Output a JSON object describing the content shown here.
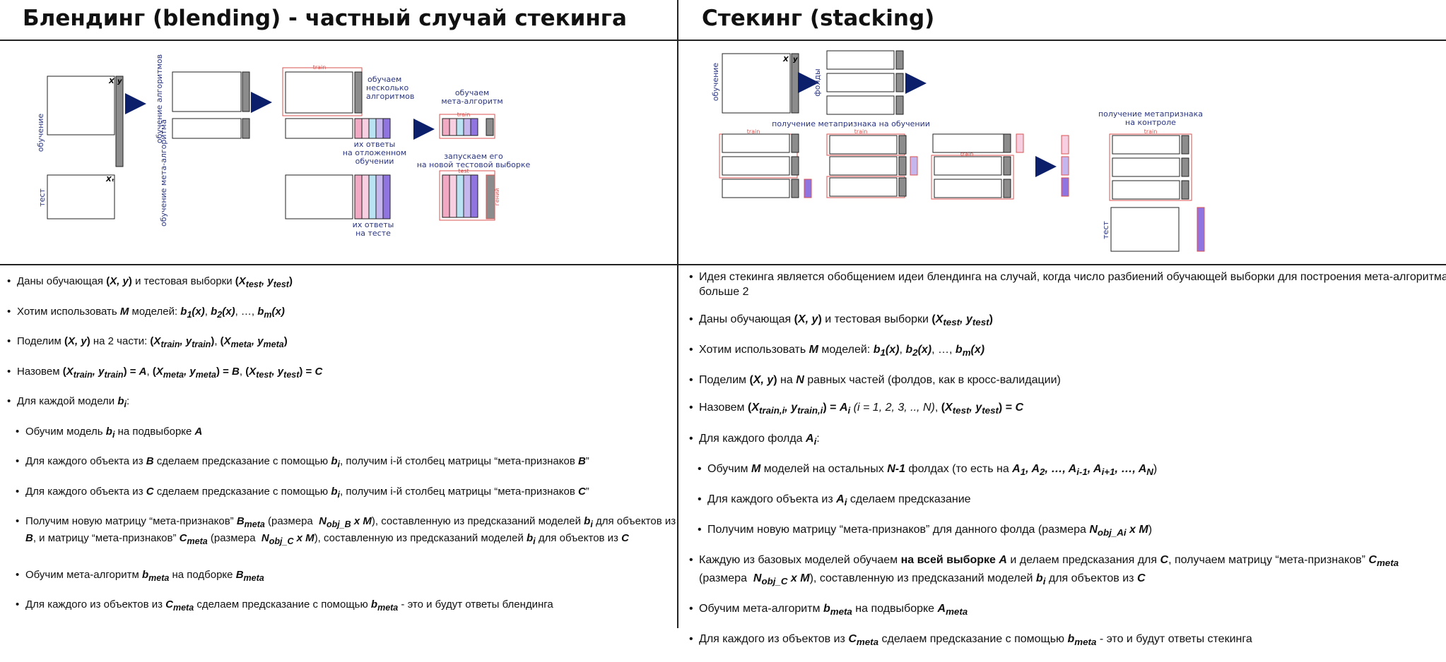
{
  "left_title": "Блендинг (blending) - частный случай стекинга",
  "right_title": "Стекинг (stacking)",
  "left_diagram": {
    "label_training": "обучение",
    "label_test": "тест",
    "col_X": "X",
    "col_y": "y",
    "col_Xt": "Xₜ",
    "label_train_algorithms": "обучение алгоритмов",
    "label_train_meta": "обучение мета-алгоритма",
    "train_tag": "train",
    "test_tag": "test",
    "note_train_several": "обучаем несколько алгоритмов",
    "note_answers_holdout": "их ответы на отложенном обучении",
    "note_train_meta": "обучаем мета-алгоритм",
    "note_run_test": "запускаем его на новой тестовой выборке",
    "note_answers_test": "их ответы на тесте",
    "result_tag": "гений"
  },
  "right_diagram": {
    "label_training": "обучение",
    "col_X": "X",
    "col_y": "y",
    "label_folds": "фолды",
    "note_meta_train": "получение метапризнака на обучении",
    "note_meta_control": "получение метапризнака на контроле",
    "train_tag": "train",
    "label_test": "тест"
  },
  "left_bullets": [
    "Даны обучающая (X, y) и тестовая выборки (Xtest, ytest)",
    "Хотим использовать M моделей: b1(x), b2(x), …, bm(x)",
    "Поделим (X, y) на 2 части: (Xtrain, ytrain), (Xmeta, ymeta)",
    "Назовем (Xtrain, ytrain) = A, (Xmeta, ymeta) = B, (Xtest, ytest) = C",
    "Для каждой модели bi:",
    "Обучим модель bi на подвыборке A",
    "Для каждого объекта из B сделаем предсказание с помощью bi, получим i-й столбец матрицы “мета-признаков B”",
    "Для каждого объекта из C сделаем предсказание с помощью bi, получим i-й столбец матрицы “мета-признаков C”",
    "Получим новую матрицу “мета-признаков” Bmeta (размера Nobj_B x M), составленную из предсказаний моделей bi для объектов из B, и матрицу “мета-признаков” Cmeta (размера Nobj_C x M), составленную из предсказаний моделей bi для объектов из C",
    "Обучим мета-алгоритм bmeta на подборке Bmeta",
    "Для каждого из объектов из Cmeta сделаем предсказание с помощью bmeta - это и будут ответы блендинга"
  ],
  "right_bullets": [
    "Идея стекинга является обобщением идеи блендинга на случай, когда число разбиений обучающей выборки для построения мета-алгоритма больше 2",
    "Даны обучающая (X, y) и тестовая выборки (Xtest, ytest)",
    "Хотим использовать M моделей: b1(x), b2(x), …, bm(x)",
    "Поделим (X, y) на N равных частей (фолдов, как в кросс-валидации)",
    "Назовем (Xtrain,i, ytrain,i) = Ai (i = 1, 2, 3, .., N), (Xtest, ytest) = C",
    "Для каждого фолда Ai:",
    "Обучим M моделей на остальных N-1 фолдах (то есть на A1, A2, …, Ai-1, Ai+1, …, AN)",
    "Для каждого объекта из Ai сделаем предсказание",
    "Получим новую матрицу “мета-признаков” для данного фолда (размера Nobj_Ai x M)",
    "Каждую из базовых моделей обучаем на всей выборке A и делаем предсказания для C, получаем матрицу “мета-признаков” Cmeta (размера Nobj_C x M), составленную из предсказаний моделей bi для объектов из C",
    "Обучим мета-алгоритм bmeta на подвыборке Ameta",
    "Для каждого из объектов из Cmeta сделаем предсказание с помощью bmeta - это и будут ответы стекинга"
  ],
  "colors": {
    "line": "#222222",
    "frame_red": "#d9534f",
    "arrow_navy": "#0b1f6b",
    "label_navy": "#2a3580",
    "bar_gray": "#8c8c8c",
    "pink": "#f2a9c4",
    "light_pink": "#f8cfe0",
    "light_blue": "#b9e3f2",
    "lavender": "#c6b6ee",
    "purple": "#9074e0"
  }
}
